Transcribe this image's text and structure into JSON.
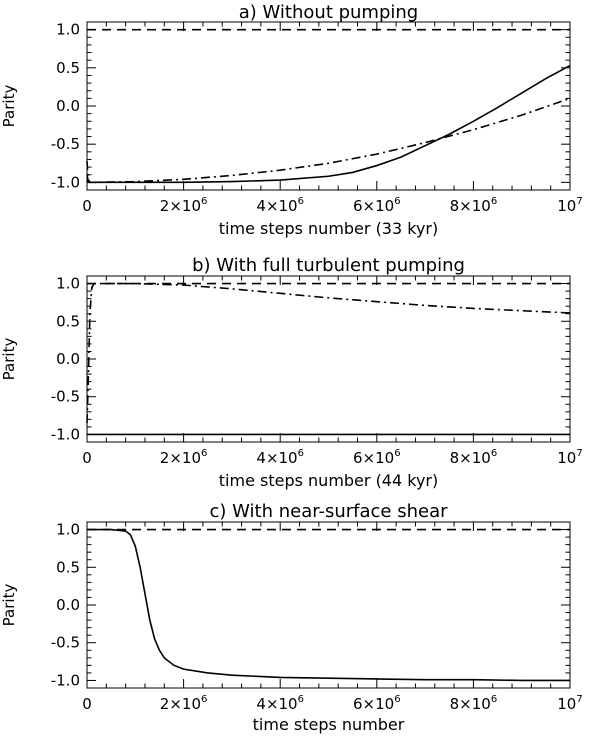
{
  "chart_data": [
    {
      "type": "line",
      "title": "a) Without pumping",
      "xlabel": "time steps number (33 kyr)",
      "ylabel": "Parity",
      "xlim": [
        0,
        10000000
      ],
      "ylim": [
        -1.1,
        1.1
      ],
      "x_ticks": [
        0,
        2000000,
        4000000,
        6000000,
        8000000,
        10000000
      ],
      "x_tick_labels": [
        {
          "base": "0",
          "exp": ""
        },
        {
          "base": "2×10",
          "exp": "6"
        },
        {
          "base": "4×10",
          "exp": "6"
        },
        {
          "base": "6×10",
          "exp": "6"
        },
        {
          "base": "8×10",
          "exp": "6"
        },
        {
          "base": "10",
          "exp": "7"
        }
      ],
      "y_ticks": [
        -1.0,
        -0.5,
        0.0,
        0.5,
        1.0
      ],
      "y_tick_labels": [
        "-1.0",
        "-0.5",
        "0.0",
        "0.5",
        "1.0"
      ],
      "grid": false,
      "series": [
        {
          "style": "dashed",
          "x": [
            0,
            10000000
          ],
          "y": [
            1.0,
            1.0
          ]
        },
        {
          "style": "dashdot",
          "x": [
            0,
            20000,
            60000,
            100000,
            1000000,
            2000000,
            3000000,
            4000000,
            5000000,
            6000000,
            7000000,
            8000000,
            9000000,
            10000000
          ],
          "y": [
            -0.72,
            -0.95,
            -1.0,
            -1.0,
            -0.99,
            -0.96,
            -0.91,
            -0.84,
            -0.75,
            -0.63,
            -0.48,
            -0.31,
            -0.12,
            0.1
          ]
        },
        {
          "style": "solid",
          "x": [
            0,
            30000,
            80000,
            1000000,
            2000000,
            3000000,
            4000000,
            5000000,
            5500000,
            6000000,
            6500000,
            7000000,
            7500000,
            8000000,
            8500000,
            9000000,
            9500000,
            10000000
          ],
          "y": [
            -0.9,
            -1.0,
            -1.0,
            -1.0,
            -1.0,
            -0.99,
            -0.97,
            -0.92,
            -0.87,
            -0.78,
            -0.67,
            -0.52,
            -0.37,
            -0.2,
            -0.02,
            0.17,
            0.36,
            0.53
          ]
        }
      ]
    },
    {
      "type": "line",
      "title": "b) With full turbulent pumping",
      "xlabel": "time steps number (44 kyr)",
      "ylabel": "Parity",
      "xlim": [
        0,
        10000000
      ],
      "ylim": [
        -1.1,
        1.1
      ],
      "x_ticks": [
        0,
        2000000,
        4000000,
        6000000,
        8000000,
        10000000
      ],
      "x_tick_labels": [
        {
          "base": "0",
          "exp": ""
        },
        {
          "base": "2×10",
          "exp": "6"
        },
        {
          "base": "4×10",
          "exp": "6"
        },
        {
          "base": "6×10",
          "exp": "6"
        },
        {
          "base": "8×10",
          "exp": "6"
        },
        {
          "base": "10",
          "exp": "7"
        }
      ],
      "y_ticks": [
        -1.0,
        -0.5,
        0.0,
        0.5,
        1.0
      ],
      "y_tick_labels": [
        "-1.0",
        "-0.5",
        "0.0",
        "0.5",
        "1.0"
      ],
      "grid": false,
      "series": [
        {
          "style": "dashed",
          "x": [
            0,
            10000000
          ],
          "y": [
            1.0,
            1.0
          ]
        },
        {
          "style": "dashdot",
          "x": [
            0,
            30000,
            60000,
            100000,
            150000,
            1000000,
            2000000,
            3000000,
            4000000,
            5000000,
            6000000,
            7000000,
            8000000,
            9000000,
            10000000
          ],
          "y": [
            -0.85,
            -0.2,
            0.6,
            0.95,
            1.0,
            1.0,
            0.98,
            0.93,
            0.87,
            0.81,
            0.76,
            0.71,
            0.67,
            0.64,
            0.61
          ]
        },
        {
          "style": "solid",
          "x": [
            0,
            10000000
          ],
          "y": [
            -1.0,
            -1.0
          ]
        }
      ]
    },
    {
      "type": "line",
      "title": "c) With near-surface shear",
      "xlabel": "time steps number",
      "ylabel": "Parity",
      "xlim": [
        0,
        10000000
      ],
      "ylim": [
        -1.1,
        1.1
      ],
      "x_ticks": [
        0,
        2000000,
        4000000,
        6000000,
        8000000,
        10000000
      ],
      "x_tick_labels": [
        {
          "base": "0",
          "exp": ""
        },
        {
          "base": "2×10",
          "exp": "6"
        },
        {
          "base": "4×10",
          "exp": "6"
        },
        {
          "base": "6×10",
          "exp": "6"
        },
        {
          "base": "8×10",
          "exp": "6"
        },
        {
          "base": "10",
          "exp": "7"
        }
      ],
      "y_ticks": [
        -1.0,
        -0.5,
        0.0,
        0.5,
        1.0
      ],
      "y_tick_labels": [
        "-1.0",
        "-0.5",
        "0.0",
        "0.5",
        "1.0"
      ],
      "grid": false,
      "series": [
        {
          "style": "dashed",
          "x": [
            0,
            10000000
          ],
          "y": [
            1.0,
            1.0
          ]
        },
        {
          "style": "solid",
          "x": [
            0,
            500000,
            800000,
            900000,
            1000000,
            1100000,
            1200000,
            1300000,
            1400000,
            1500000,
            1600000,
            1800000,
            2000000,
            2500000,
            3000000,
            4000000,
            5000000,
            6000000,
            7000000,
            8000000,
            9000000,
            10000000
          ],
          "y": [
            1.0,
            1.0,
            0.98,
            0.93,
            0.78,
            0.5,
            0.15,
            -0.2,
            -0.45,
            -0.6,
            -0.7,
            -0.8,
            -0.85,
            -0.9,
            -0.93,
            -0.96,
            -0.97,
            -0.98,
            -0.99,
            -0.99,
            -1.0,
            -1.0
          ]
        }
      ]
    }
  ]
}
